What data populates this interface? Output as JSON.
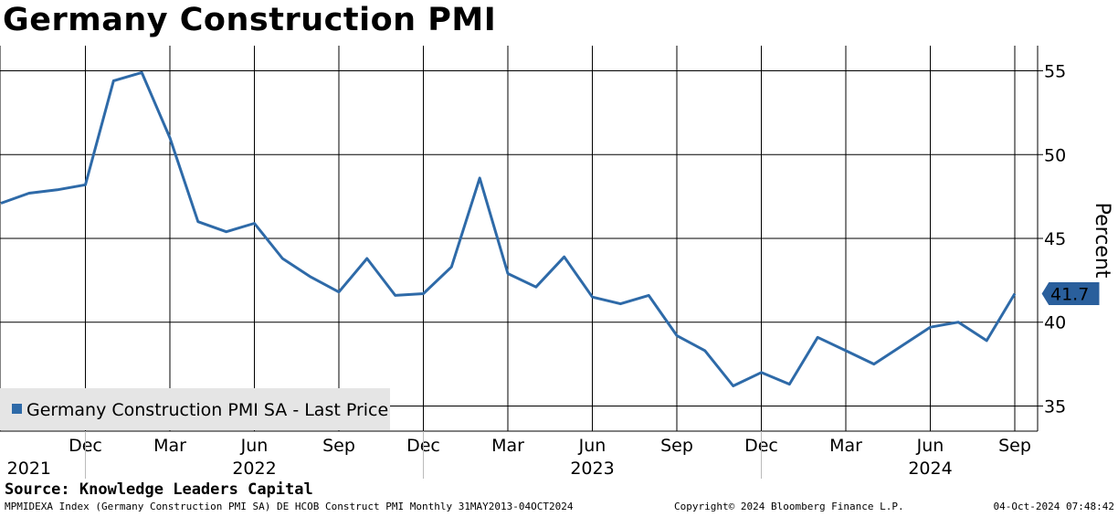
{
  "chart_data": {
    "type": "line",
    "title": "Germany Construction PMI",
    "ylabel": "Percent",
    "ylim": [
      33.5,
      56.5
    ],
    "y_ticks": [
      35,
      40,
      45,
      50,
      55
    ],
    "grid": true,
    "legend_position": "bottom-left",
    "month_tick_labels": [
      "Dec",
      "Mar",
      "Jun",
      "Sep",
      "Dec",
      "Mar",
      "Jun",
      "Sep",
      "Dec",
      "Mar",
      "Jun",
      "Sep"
    ],
    "month_ticks": [
      "2021-12",
      "2022-03",
      "2022-06",
      "2022-09",
      "2022-12",
      "2023-03",
      "2023-06",
      "2023-09",
      "2023-12",
      "2024-03",
      "2024-06",
      "2024-09"
    ],
    "year_labels": [
      {
        "label": "2021",
        "at": "2021-10"
      },
      {
        "label": "2022",
        "at": "2022-06"
      },
      {
        "label": "2023",
        "at": "2023-06"
      },
      {
        "label": "2024",
        "at": "2024-06"
      }
    ],
    "year_separators": [
      "2021-12",
      "2022-12",
      "2023-12"
    ],
    "x_range": [
      "2021-09",
      "2024-09"
    ],
    "series": [
      {
        "name": "Germany Construction PMI SA - Last Price",
        "color": "#2e6aa8",
        "last_value": "41.7",
        "x": [
          "2021-09",
          "2021-10",
          "2021-11",
          "2021-12",
          "2022-01",
          "2022-02",
          "2022-03",
          "2022-04",
          "2022-05",
          "2022-06",
          "2022-07",
          "2022-08",
          "2022-09",
          "2022-10",
          "2022-11",
          "2022-12",
          "2023-01",
          "2023-02",
          "2023-03",
          "2023-04",
          "2023-05",
          "2023-06",
          "2023-07",
          "2023-08",
          "2023-09",
          "2023-10",
          "2023-11",
          "2023-12",
          "2024-01",
          "2024-02",
          "2024-03",
          "2024-04",
          "2024-05",
          "2024-06",
          "2024-07",
          "2024-08",
          "2024-09"
        ],
        "values": [
          47.1,
          47.7,
          47.9,
          48.2,
          54.4,
          54.9,
          51.0,
          46.0,
          45.4,
          45.9,
          43.8,
          42.7,
          41.8,
          43.8,
          41.6,
          41.7,
          43.3,
          48.6,
          42.9,
          42.1,
          43.9,
          41.5,
          41.1,
          41.6,
          39.2,
          38.3,
          36.2,
          37.0,
          36.3,
          39.1,
          38.3,
          37.5,
          38.6,
          39.7,
          40.0,
          38.9,
          41.7
        ]
      }
    ]
  },
  "footer": {
    "source": "Source: Knowledge Leaders Capital",
    "index_info": "MPMIDEXA Index (Germany Construction PMI SA) DE HCOB Construct PMI  Monthly 31MAY2013-04OCT2024",
    "copyright": "Copyright© 2024 Bloomberg Finance L.P.",
    "timestamp": "04-Oct-2024 07:48:42"
  }
}
